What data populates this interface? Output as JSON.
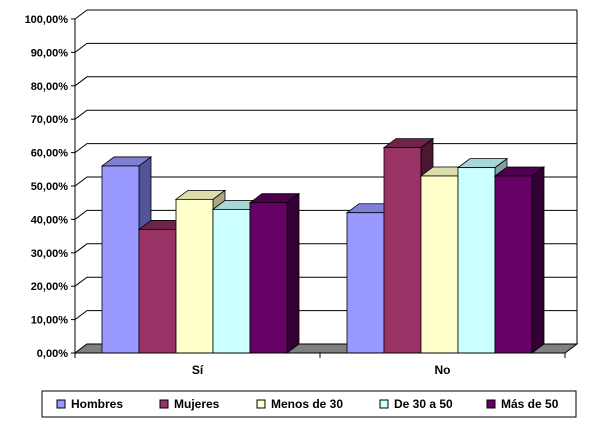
{
  "chart_data": {
    "type": "bar",
    "categories": [
      "Sí",
      "No"
    ],
    "series": [
      {
        "name": "Hombres",
        "values": [
          56.0,
          42.0
        ]
      },
      {
        "name": "Mujeres",
        "values": [
          37.0,
          61.5
        ]
      },
      {
        "name": "Menos de 30",
        "values": [
          46.0,
          53.0
        ]
      },
      {
        "name": "De 30 a 50",
        "values": [
          43.0,
          55.5
        ]
      },
      {
        "name": "Más de 50",
        "values": [
          45.0,
          53.0
        ]
      }
    ],
    "ylim": [
      0,
      100
    ],
    "yticks": [
      "0,00%",
      "10,00%",
      "20,00%",
      "30,00%",
      "40,00%",
      "50,00%",
      "60,00%",
      "70,00%",
      "80,00%",
      "90,00%",
      "100,00%"
    ],
    "grid": true,
    "legend_position": "bottom",
    "title": "",
    "xlabel": "",
    "ylabel": "",
    "colors": {
      "Hombres": {
        "front": "#9999ff",
        "top": "#7f7fd6",
        "side": "#545499"
      },
      "Mujeres": {
        "front": "#993366",
        "top": "#6e2449",
        "side": "#4a1830"
      },
      "Menos de 30": {
        "front": "#ffffcc",
        "top": "#dcdcad",
        "side": "#a8a884"
      },
      "De 30 a 50": {
        "front": "#ccffff",
        "top": "#a9d6d6",
        "side": "#7fa3a3"
      },
      "Más de 50": {
        "front": "#660066",
        "top": "#4c004c",
        "side": "#330033"
      }
    },
    "floor_color": "#808080",
    "axis_color": "#000000"
  }
}
